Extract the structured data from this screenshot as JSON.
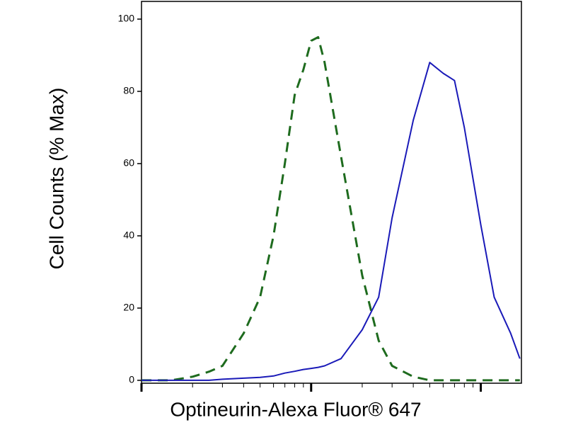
{
  "chart_data": {
    "type": "line",
    "ylabel": "Cell Counts (% Max)",
    "xlabel": "Optineurin-Alexa Fluor® 647",
    "x": [
      100,
      120,
      150,
      200,
      250,
      300,
      400,
      500,
      600,
      700,
      800,
      900,
      1000,
      1100,
      1200,
      1500,
      2000,
      2500,
      3000,
      4000,
      5000,
      6000,
      7000,
      8000,
      10000,
      12000,
      15000,
      17000
    ],
    "series": [
      {
        "color": "#1e6b1e",
        "dash": true,
        "values": [
          0,
          0,
          0,
          1,
          2.4,
          4,
          13,
          23,
          40,
          60,
          79,
          86,
          94,
          95,
          88,
          62,
          29,
          11,
          4,
          1,
          0,
          0,
          0,
          0,
          0,
          0,
          0,
          0
        ]
      },
      {
        "color": "#1a1ab8",
        "dash": false,
        "values": [
          0,
          0,
          0,
          0,
          0,
          0.3,
          0.6,
          0.8,
          1.2,
          2,
          2.5,
          3,
          3.3,
          3.6,
          4,
          6,
          14,
          23,
          45,
          72,
          88,
          85,
          83,
          70,
          43,
          23,
          13,
          6
        ]
      }
    ],
    "xlog": true,
    "xlim": [
      100,
      17360
    ],
    "xticks": [
      100,
      1000,
      10000
    ],
    "xminorticks": [
      200,
      300,
      400,
      500,
      600,
      700,
      800,
      900,
      2000,
      3000,
      4000,
      5000,
      6000,
      7000,
      8000,
      9000
    ],
    "ylim": [
      -0.8,
      104.9
    ],
    "yticks": [
      0,
      20,
      40,
      60,
      80,
      100
    ]
  }
}
